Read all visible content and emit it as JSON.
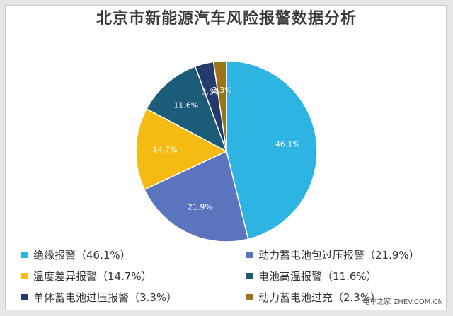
{
  "title": "北京市新能源汽车风险报警数据分析",
  "chart_data": {
    "type": "pie",
    "title": "北京市新能源汽车风险报警数据分析",
    "slices": [
      {
        "label": "绝缘报警",
        "value": 46.1,
        "display": "46.1%",
        "legend": "绝缘报警（46.1%）",
        "color": "#2db4e3"
      },
      {
        "label": "动力蓄电池包过压报警",
        "value": 21.9,
        "display": "21.9%",
        "legend": "动力蓄电池包过压报警（21.9%）",
        "color": "#5b74be"
      },
      {
        "label": "温度差异报警",
        "value": 14.7,
        "display": "14.7%",
        "legend": "温度差异报警（14.7%）",
        "color": "#f6bb13"
      },
      {
        "label": "电池高温报警",
        "value": 11.6,
        "display": "11.6%",
        "legend": "电池高温报警（11.6%）",
        "color": "#1d5c78"
      },
      {
        "label": "单体蓄电池过压报警",
        "value": 3.3,
        "display": "3.3%",
        "legend": "单体蓄电池过压报警（3.3%）",
        "color": "#243a6b"
      },
      {
        "label": "动力蓄电池过充",
        "value": 2.3,
        "display": "2.3%",
        "legend": "动力蓄电池过充（2.3%）",
        "color": "#9c7316"
      }
    ],
    "legend_position": "bottom"
  },
  "watermark": "电车之家 ZHEV.COM.CN"
}
